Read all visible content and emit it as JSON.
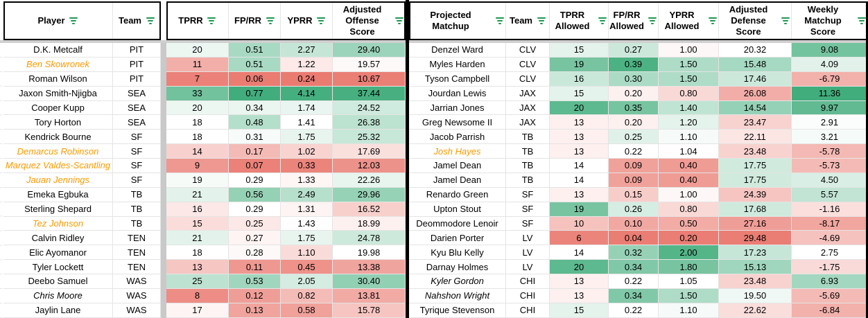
{
  "colors": {
    "scale_green": "#42ad7c",
    "scale_red": "#e9766c",
    "scale_white": "#ffffff",
    "accent_border_green": "#188038",
    "filter_icon_green": "#1d9850",
    "special_player_orange": "#ff9900",
    "gridline": "#e4e4e4",
    "frozen_shadow_gray": "#cfcfcf",
    "pane_divider_gray": "#c9c9c9",
    "section_divider_black": "#000000"
  },
  "left_table": {
    "columns": [
      {
        "label": "Player",
        "key": "name"
      },
      {
        "label": "Team",
        "key": "team"
      },
      {
        "spacer": true
      },
      {
        "label": "TPRR",
        "key": "tprr",
        "scale": {
          "min": 6,
          "mid": 18,
          "max": 38
        }
      },
      {
        "label": "FP/RR",
        "key": "fprr",
        "scale": {
          "min": 0.05,
          "mid": 0.29,
          "max": 0.77
        }
      },
      {
        "label": "YPRR",
        "key": "yprr",
        "scale": {
          "min": 0.2,
          "mid": 1.41,
          "max": 4.2
        }
      },
      {
        "label": "Adjusted Offense Score",
        "key": "aos",
        "scale": {
          "min": 10,
          "mid": 19.98,
          "max": 38
        }
      }
    ],
    "rows": [
      {
        "name": "D.K. Metcalf",
        "team": "PIT",
        "tprr": "20",
        "fprr": "0.51",
        "yprr": "2.27",
        "aos": "29.40"
      },
      {
        "name": "Ben Skowronek",
        "team": "PIT",
        "tprr": "11",
        "fprr": "0.51",
        "yprr": "1.22",
        "aos": "19.57",
        "name_style": "orange-italic"
      },
      {
        "name": "Roman Wilson",
        "team": "PIT",
        "tprr": "7",
        "fprr": "0.06",
        "yprr": "0.24",
        "aos": "10.67"
      },
      {
        "name": "Jaxon Smith-Njigba",
        "team": "SEA",
        "tprr": "33",
        "fprr": "0.77",
        "yprr": "4.14",
        "aos": "37.44"
      },
      {
        "name": "Cooper Kupp",
        "team": "SEA",
        "tprr": "20",
        "fprr": "0.34",
        "yprr": "1.74",
        "aos": "24.52"
      },
      {
        "name": "Tory Horton",
        "team": "SEA",
        "tprr": "18",
        "fprr": "0.48",
        "yprr": "1.41",
        "aos": "26.38"
      },
      {
        "name": "Kendrick Bourne",
        "team": "SF",
        "tprr": "18",
        "fprr": "0.31",
        "yprr": "1.75",
        "aos": "25.32"
      },
      {
        "name": "Demarcus Robinson",
        "team": "SF",
        "tprr": "14",
        "fprr": "0.17",
        "yprr": "1.02",
        "aos": "17.69",
        "name_style": "orange-italic"
      },
      {
        "name": "Marquez Valdes-Scantling",
        "team": "SF",
        "tprr": "9",
        "fprr": "0.07",
        "yprr": "0.33",
        "aos": "12.03",
        "name_style": "orange-italic"
      },
      {
        "name": "Jauan Jennings",
        "team": "SF",
        "tprr": "19",
        "fprr": "0.29",
        "yprr": "1.33",
        "aos": "22.26",
        "name_style": "orange-italic"
      },
      {
        "name": "Emeka Egbuka",
        "team": "TB",
        "tprr": "21",
        "fprr": "0.56",
        "yprr": "2.49",
        "aos": "29.96"
      },
      {
        "name": "Sterling Shepard",
        "team": "TB",
        "tprr": "16",
        "fprr": "0.29",
        "yprr": "1.31",
        "aos": "16.52"
      },
      {
        "name": "Tez Johnson",
        "team": "TB",
        "tprr": "15",
        "fprr": "0.25",
        "yprr": "1.43",
        "aos": "18.99",
        "name_style": "orange-italic"
      },
      {
        "name": "Calvin Ridley",
        "team": "TEN",
        "tprr": "21",
        "fprr": "0.27",
        "yprr": "1.75",
        "aos": "24.78"
      },
      {
        "name": "Elic Ayomanor",
        "team": "TEN",
        "tprr": "18",
        "fprr": "0.28",
        "yprr": "1.10",
        "aos": "19.98"
      },
      {
        "name": "Tyler Lockett",
        "team": "TEN",
        "tprr": "13",
        "fprr": "0.11",
        "yprr": "0.45",
        "aos": "13.38"
      },
      {
        "name": "Deebo Samuel",
        "team": "WAS",
        "tprr": "25",
        "fprr": "0.53",
        "yprr": "2.05",
        "aos": "30.40"
      },
      {
        "name": "Chris Moore",
        "team": "WAS",
        "tprr": "8",
        "fprr": "0.12",
        "yprr": "0.82",
        "aos": "13.81",
        "name_style": "italic"
      },
      {
        "name": "Jaylin Lane",
        "team": "WAS",
        "tprr": "17",
        "fprr": "0.13",
        "yprr": "0.58",
        "aos": "15.78"
      }
    ]
  },
  "right_table": {
    "columns": [
      {
        "label": "Projected Matchup",
        "key": "name"
      },
      {
        "label": "Team",
        "key": "team"
      },
      {
        "label": "TPRR Allowed",
        "key": "tprr_allowed",
        "scale": {
          "min": 5,
          "mid": 14,
          "max": 21
        }
      },
      {
        "label": "FP/RR Allowed",
        "key": "fprr_allowed",
        "scale": {
          "min": 0.03,
          "mid": 0.22,
          "max": 0.4
        }
      },
      {
        "label": "YPRR Allowed",
        "key": "yprr_allowed",
        "scale": {
          "min": 0.15,
          "mid": 1.05,
          "max": 2.1
        }
      },
      {
        "label": "Adjusted Defense Score",
        "key": "ads",
        "scale": {
          "min": 10,
          "mid": 20.32,
          "max": 30,
          "invert": true
        }
      },
      {
        "label": "Weekly Matchup Score",
        "key": "wms",
        "scale": {
          "min": -14,
          "mid": 2.75,
          "max": 11.36
        }
      }
    ],
    "rows": [
      {
        "name": "Denzel Ward",
        "team": "CLV",
        "tprr_allowed": "15",
        "fprr_allowed": "0.27",
        "yprr_allowed": "1.00",
        "ads": "20.32",
        "wms": "9.08"
      },
      {
        "name": "Myles Harden",
        "team": "CLV",
        "tprr_allowed": "19",
        "fprr_allowed": "0.39",
        "yprr_allowed": "1.50",
        "ads": "15.48",
        "wms": "4.09"
      },
      {
        "name": "Tyson Campbell",
        "team": "CLV",
        "tprr_allowed": "16",
        "fprr_allowed": "0.30",
        "yprr_allowed": "1.50",
        "ads": "17.46",
        "wms": "-6.79"
      },
      {
        "name": "Jourdan Lewis",
        "team": "JAX",
        "tprr_allowed": "15",
        "fprr_allowed": "0.20",
        "yprr_allowed": "0.80",
        "ads": "26.08",
        "wms": "11.36"
      },
      {
        "name": "Jarrian Jones",
        "team": "JAX",
        "tprr_allowed": "20",
        "fprr_allowed": "0.35",
        "yprr_allowed": "1.40",
        "ads": "14.54",
        "wms": "9.97"
      },
      {
        "name": "Greg Newsome II",
        "team": "JAX",
        "tprr_allowed": "13",
        "fprr_allowed": "0.20",
        "yprr_allowed": "1.20",
        "ads": "23.47",
        "wms": "2.91"
      },
      {
        "name": "Jacob Parrish",
        "team": "TB",
        "tprr_allowed": "13",
        "fprr_allowed": "0.25",
        "yprr_allowed": "1.10",
        "ads": "22.11",
        "wms": "3.21"
      },
      {
        "name": "Josh Hayes",
        "team": "TB",
        "tprr_allowed": "13",
        "fprr_allowed": "0.22",
        "yprr_allowed": "1.04",
        "ads": "23.48",
        "wms": "-5.78",
        "name_style": "orange-italic"
      },
      {
        "name": "Jamel Dean",
        "team": "TB",
        "tprr_allowed": "14",
        "fprr_allowed": "0.09",
        "yprr_allowed": "0.40",
        "ads": "17.75",
        "wms": "-5.73"
      },
      {
        "name": "Jamel Dean",
        "team": "TB",
        "tprr_allowed": "14",
        "fprr_allowed": "0.09",
        "yprr_allowed": "0.40",
        "ads": "17.75",
        "wms": "4.50"
      },
      {
        "name": "Renardo Green",
        "team": "SF",
        "tprr_allowed": "13",
        "fprr_allowed": "0.15",
        "yprr_allowed": "1.00",
        "ads": "24.39",
        "wms": "5.57"
      },
      {
        "name": "Upton Stout",
        "team": "SF",
        "tprr_allowed": "19",
        "fprr_allowed": "0.26",
        "yprr_allowed": "0.80",
        "ads": "17.68",
        "wms": "-1.16"
      },
      {
        "name": "Deommodore Lenoir",
        "team": "SF",
        "tprr_allowed": "10",
        "fprr_allowed": "0.10",
        "yprr_allowed": "0.50",
        "ads": "27.16",
        "wms": "-8.17"
      },
      {
        "name": "Darien Porter",
        "team": "LV",
        "tprr_allowed": "6",
        "fprr_allowed": "0.04",
        "yprr_allowed": "0.20",
        "ads": "29.48",
        "wms": "-4.69"
      },
      {
        "name": "Kyu Blu Kelly",
        "team": "LV",
        "tprr_allowed": "14",
        "fprr_allowed": "0.32",
        "yprr_allowed": "2.00",
        "ads": "17.23",
        "wms": "2.75"
      },
      {
        "name": "Darnay Holmes",
        "team": "LV",
        "tprr_allowed": "20",
        "fprr_allowed": "0.34",
        "yprr_allowed": "1.80",
        "ads": "15.13",
        "wms": "-1.75"
      },
      {
        "name": "Kyler Gordon",
        "team": "CHI",
        "tprr_allowed": "13",
        "fprr_allowed": "0.22",
        "yprr_allowed": "1.05",
        "ads": "23.48",
        "wms": "6.93",
        "name_style": "italic"
      },
      {
        "name": "Nahshon Wright",
        "team": "CHI",
        "tprr_allowed": "13",
        "fprr_allowed": "0.34",
        "yprr_allowed": "1.50",
        "ads": "19.50",
        "wms": "-5.69",
        "name_style": "italic"
      },
      {
        "name": "Tyrique Stevenson",
        "team": "CHI",
        "tprr_allowed": "15",
        "fprr_allowed": "0.22",
        "yprr_allowed": "1.10",
        "ads": "22.62",
        "wms": "-6.84"
      }
    ]
  }
}
